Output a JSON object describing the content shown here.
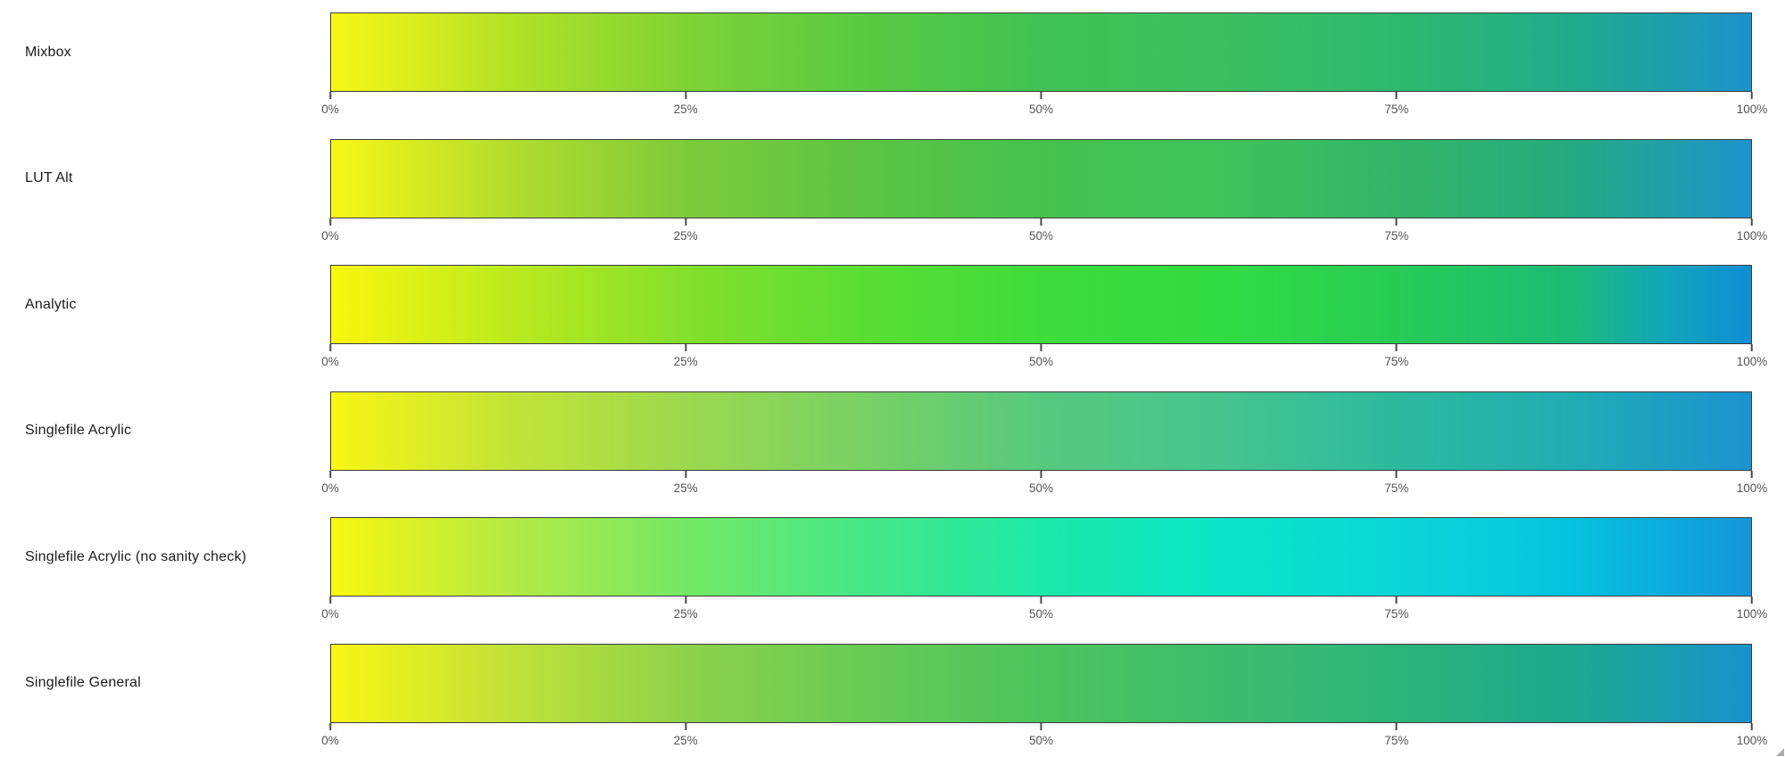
{
  "page": {
    "background_color": "#ffffff",
    "bar_border_color": "#3c3c3c",
    "tick_color": "#4a4a4a",
    "tick_label_color": "#555555",
    "row_label_color": "#1c1c1c"
  },
  "chart_data": {
    "type": "heatmap",
    "title": "",
    "xlabel": "",
    "ylabel": "",
    "xlim": [
      0,
      100
    ],
    "grid": false,
    "legend": false,
    "x_tick_labels": [
      "0%",
      "25%",
      "50%",
      "75%",
      "100%"
    ],
    "categories": [
      "Mixbox",
      "LUT Alt",
      "Analytic",
      "Singlefile Acrylic",
      "Singlefile Acrylic (no sanity check)",
      "Singlefile General"
    ],
    "series": [
      {
        "name": "Mixbox",
        "gradient_stops": [
          {
            "pos": 0,
            "color": "#f8f716"
          },
          {
            "pos": 0.125,
            "color": "#b4e226"
          },
          {
            "pos": 0.25,
            "color": "#7fd335"
          },
          {
            "pos": 0.375,
            "color": "#59ca41"
          },
          {
            "pos": 0.5,
            "color": "#40c254"
          },
          {
            "pos": 0.625,
            "color": "#3bc160"
          },
          {
            "pos": 0.75,
            "color": "#2eb96e"
          },
          {
            "pos": 0.875,
            "color": "#20ac8b"
          },
          {
            "pos": 1,
            "color": "#1b92cc"
          }
        ]
      },
      {
        "name": "LUT Alt",
        "gradient_stops": [
          {
            "pos": 0,
            "color": "#f8f716"
          },
          {
            "pos": 0.125,
            "color": "#b3dd2e"
          },
          {
            "pos": 0.25,
            "color": "#7ecb3a"
          },
          {
            "pos": 0.375,
            "color": "#5cc443"
          },
          {
            "pos": 0.5,
            "color": "#45c24e"
          },
          {
            "pos": 0.625,
            "color": "#3fc45b"
          },
          {
            "pos": 0.75,
            "color": "#32b567"
          },
          {
            "pos": 0.875,
            "color": "#26aa81"
          },
          {
            "pos": 1,
            "color": "#1d93cc"
          }
        ]
      },
      {
        "name": "Analytic",
        "gradient_stops": [
          {
            "pos": 0,
            "color": "#f9f80e"
          },
          {
            "pos": 0.125,
            "color": "#bcea1e"
          },
          {
            "pos": 0.25,
            "color": "#84e02b"
          },
          {
            "pos": 0.375,
            "color": "#5ade33"
          },
          {
            "pos": 0.5,
            "color": "#3edc3b"
          },
          {
            "pos": 0.625,
            "color": "#32dc43"
          },
          {
            "pos": 0.75,
            "color": "#28cc55"
          },
          {
            "pos": 0.875,
            "color": "#1cbb78"
          },
          {
            "pos": 0.94,
            "color": "#12a5bb"
          },
          {
            "pos": 1,
            "color": "#0f8ed4"
          }
        ]
      },
      {
        "name": "Singlefile Acrylic",
        "gradient_stops": [
          {
            "pos": 0,
            "color": "#f8f715"
          },
          {
            "pos": 0.125,
            "color": "#c3e437"
          },
          {
            "pos": 0.25,
            "color": "#9cd94e"
          },
          {
            "pos": 0.375,
            "color": "#78d165"
          },
          {
            "pos": 0.5,
            "color": "#57c97e"
          },
          {
            "pos": 0.625,
            "color": "#46c58f"
          },
          {
            "pos": 0.75,
            "color": "#2dba9d"
          },
          {
            "pos": 0.875,
            "color": "#20adb5"
          },
          {
            "pos": 1,
            "color": "#1b93cf"
          }
        ]
      },
      {
        "name": "Singlefile Acrylic (no sanity check)",
        "gradient_stops": [
          {
            "pos": 0,
            "color": "#f8f80f"
          },
          {
            "pos": 0.125,
            "color": "#b5ea43"
          },
          {
            "pos": 0.25,
            "color": "#74e865"
          },
          {
            "pos": 0.375,
            "color": "#45e888"
          },
          {
            "pos": 0.5,
            "color": "#1ce9a8"
          },
          {
            "pos": 0.625,
            "color": "#0ae5c6"
          },
          {
            "pos": 0.75,
            "color": "#0bd7d7"
          },
          {
            "pos": 0.875,
            "color": "#05c3de"
          },
          {
            "pos": 1,
            "color": "#1496da"
          }
        ]
      },
      {
        "name": "Singlefile General",
        "gradient_stops": [
          {
            "pos": 0,
            "color": "#f8f715"
          },
          {
            "pos": 0.125,
            "color": "#c2e138"
          },
          {
            "pos": 0.25,
            "color": "#8ed24a"
          },
          {
            "pos": 0.375,
            "color": "#68cb54"
          },
          {
            "pos": 0.5,
            "color": "#4cc45d"
          },
          {
            "pos": 0.625,
            "color": "#3ebd6d"
          },
          {
            "pos": 0.75,
            "color": "#2cb47a"
          },
          {
            "pos": 0.875,
            "color": "#1ca98f"
          },
          {
            "pos": 1,
            "color": "#1992cd"
          }
        ]
      }
    ]
  }
}
